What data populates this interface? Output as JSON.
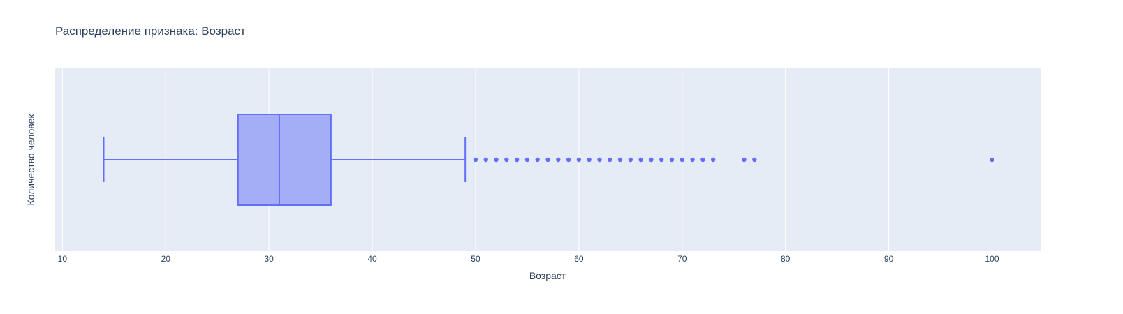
{
  "colors": {
    "plot_bg": "#e5ecf6",
    "grid": "#ffffff",
    "box_line": "#636efa",
    "box_fill": "#a4aef7",
    "text": "#2a3f5f"
  },
  "chart_data": {
    "type": "box",
    "title": "Распределение признака: Возраст",
    "xlabel": "Возраст",
    "ylabel": "Количество человек",
    "xlim": [
      9.3,
      104.7
    ],
    "x_ticks": [
      10,
      20,
      30,
      40,
      50,
      60,
      70,
      80,
      90,
      100
    ],
    "grid": true,
    "orientation": "horizontal",
    "box": {
      "lower_fence": 14,
      "q1": 27,
      "median": 31,
      "q3": 36,
      "upper_fence": 49
    },
    "outliers": [
      50,
      51,
      52,
      53,
      54,
      55,
      56,
      57,
      58,
      59,
      60,
      61,
      62,
      63,
      64,
      65,
      66,
      67,
      68,
      69,
      70,
      71,
      72,
      73,
      76,
      77,
      100
    ]
  }
}
